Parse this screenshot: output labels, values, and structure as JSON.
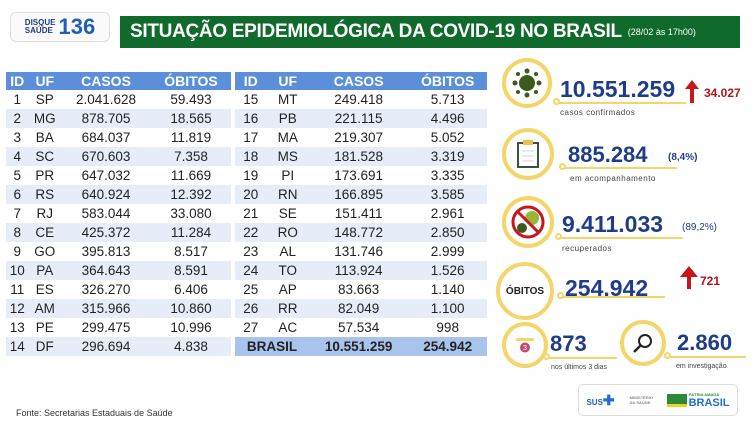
{
  "logo": {
    "line1": "DISQUE",
    "line2": "SAÚDE",
    "number": "136"
  },
  "header": {
    "title": "SITUAÇÃO EPIDEMIOLÓGICA DA COVID-19 NO BRASIL",
    "date": "(28/02 às 17h00)"
  },
  "table": {
    "columns": [
      "ID",
      "UF",
      "CASOS",
      "ÓBITOS"
    ],
    "left": [
      [
        "1",
        "SP",
        "2.041.628",
        "59.493"
      ],
      [
        "2",
        "MG",
        "878.705",
        "18.565"
      ],
      [
        "3",
        "BA",
        "684.037",
        "11.819"
      ],
      [
        "4",
        "SC",
        "670.603",
        "7.358"
      ],
      [
        "5",
        "PR",
        "647.032",
        "11.669"
      ],
      [
        "6",
        "RS",
        "640.924",
        "12.392"
      ],
      [
        "7",
        "RJ",
        "583.044",
        "33.080"
      ],
      [
        "8",
        "CE",
        "425.372",
        "11.284"
      ],
      [
        "9",
        "GO",
        "395.813",
        "8.517"
      ],
      [
        "10",
        "PA",
        "364.643",
        "8.591"
      ],
      [
        "11",
        "ES",
        "326.270",
        "6.406"
      ],
      [
        "12",
        "AM",
        "315.966",
        "10.860"
      ],
      [
        "13",
        "PE",
        "299.475",
        "10.996"
      ],
      [
        "14",
        "DF",
        "296.694",
        "4.838"
      ]
    ],
    "right": [
      [
        "15",
        "MT",
        "249.418",
        "5.713"
      ],
      [
        "16",
        "PB",
        "221.115",
        "4.496"
      ],
      [
        "17",
        "MA",
        "219.307",
        "5.052"
      ],
      [
        "18",
        "MS",
        "181.528",
        "3.319"
      ],
      [
        "19",
        "PI",
        "173.691",
        "3.335"
      ],
      [
        "20",
        "RN",
        "166.895",
        "3.585"
      ],
      [
        "21",
        "SE",
        "151.411",
        "2.961"
      ],
      [
        "22",
        "RO",
        "148.772",
        "2.850"
      ],
      [
        "23",
        "AL",
        "131.746",
        "2.999"
      ],
      [
        "24",
        "TO",
        "113.924",
        "1.526"
      ],
      [
        "25",
        "AP",
        "83.663",
        "1.140"
      ],
      [
        "26",
        "RR",
        "82.049",
        "1.100"
      ],
      [
        "27",
        "AC",
        "57.534",
        "998"
      ]
    ],
    "total": {
      "label": "BRASIL",
      "casos": "10.551.259",
      "obitos": "254.942"
    }
  },
  "stats": {
    "confirmed": {
      "value": "10.551.259",
      "delta": "34.027",
      "label": "casos confirmados",
      "icon": "virus-icon"
    },
    "monitoring": {
      "value": "885.284",
      "pct": "(8,4%)",
      "label": "em acompanhamento",
      "icon": "clipboard-icon"
    },
    "recovered": {
      "value": "9.411.033",
      "pct": "(89,2%)",
      "label": "recuperados",
      "icon": "no-virus-icon"
    },
    "deaths": {
      "badge": "ÓBITOS",
      "value": "254.942",
      "delta": "721"
    },
    "last3": {
      "value": "873",
      "label": "nos últimos 3 dias",
      "icon": "calendar-icon",
      "calendar_day": "3"
    },
    "investigation": {
      "value": "2.860",
      "label": "em investigação",
      "icon": "magnifier-icon"
    }
  },
  "footer": {
    "source": "Fonte: Secretarias Estaduais de Saúde"
  },
  "gov": {
    "sus": "SUS",
    "ministry": "MINISTÉRIO DA SAÚDE",
    "brand": "BRASIL",
    "brand_top": "PÁTRIA AMADA"
  },
  "colors": {
    "header_green": "#0f6a2c",
    "table_header": "#5b8fd9",
    "number_blue": "#1f3c88",
    "increase_red": "#c8161d",
    "ring_yellow": "#f3d56a"
  }
}
